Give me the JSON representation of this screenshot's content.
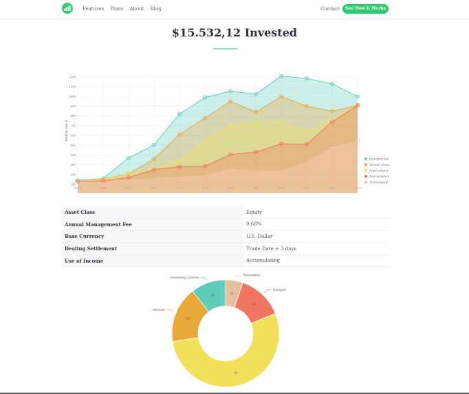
{
  "nav": {
    "logo": "chart-logo-icon",
    "links": [
      "Features",
      "Plans",
      "About",
      "Blog"
    ],
    "contact": "Contact",
    "cta": "See How it Works"
  },
  "header": {
    "title": "$15.532,12 Invested"
  },
  "details": {
    "rows": [
      {
        "key": "Asset Class",
        "value": "Equity"
      },
      {
        "key": "Annual Management Fee",
        "value": "0.68%"
      },
      {
        "key": "Base Currency",
        "value": "U.S. Dollar"
      },
      {
        "key": "Dealing Settlement",
        "value": "Trade Date + 3 days"
      },
      {
        "key": "Use of Income",
        "value": "Accumulating"
      }
    ]
  },
  "colors": {
    "brand": "#2ecc71",
    "accent_line": "#8fd9c8"
  },
  "chart_data": [
    {
      "type": "area",
      "title": "",
      "xlabel": "",
      "ylabel": "Portfolio size, €",
      "x": [
        "2008",
        "2009",
        "2010",
        "2011",
        "2012",
        "2013",
        "2014",
        "2015",
        "2016",
        "2017",
        "2018",
        "2019"
      ],
      "yticks": [
        100,
        200,
        300,
        400,
        500,
        600,
        700,
        800,
        900,
        1000,
        1100,
        1200
      ],
      "ylim": [
        100,
        1250
      ],
      "grid": true,
      "legend_position": "right",
      "series": [
        {
          "name": "Emerging mar",
          "color": "#6fd1c4",
          "values": [
            140,
            160,
            370,
            505,
            820,
            990,
            1055,
            1025,
            1210,
            1185,
            1130,
            1000
          ]
        },
        {
          "name": "Climate chang",
          "color": "#e8a94a",
          "values": [
            130,
            155,
            205,
            360,
            610,
            780,
            950,
            840,
            1000,
            900,
            850,
            910
          ]
        },
        {
          "name": "Rapid urbanis",
          "color": "#f0e060",
          "values": [
            130,
            150,
            200,
            260,
            340,
            545,
            700,
            730,
            740,
            640,
            760,
            910
          ]
        },
        {
          "name": "Demographics",
          "color": "#ef7a62",
          "values": [
            130,
            135,
            170,
            250,
            280,
            285,
            405,
            430,
            515,
            510,
            740,
            910
          ]
        },
        {
          "name": "Technological",
          "color": "#eec4a0",
          "values": [
            130,
            130,
            150,
            165,
            180,
            190,
            260,
            240,
            240,
            330,
            490,
            550
          ]
        }
      ]
    },
    {
      "type": "pie",
      "donut": true,
      "title": "",
      "categories": [
        "Renewables",
        "Transport",
        "",
        "Medicine",
        "Developing countries"
      ],
      "values": [
        5,
        13,
        51,
        16,
        10
      ],
      "colors": [
        "#e8bf9c",
        "#f07662",
        "#f2e05a",
        "#e8a838",
        "#5fcdb9"
      ]
    }
  ]
}
